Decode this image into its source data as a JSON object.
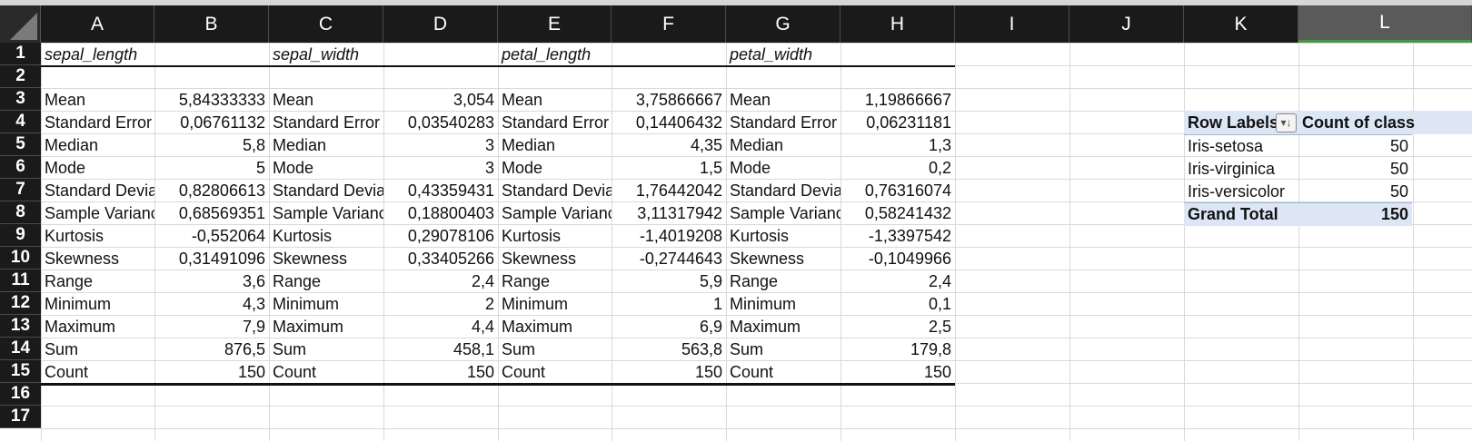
{
  "columns": [
    "A",
    "B",
    "C",
    "D",
    "E",
    "F",
    "G",
    "H",
    "I",
    "J",
    "K",
    "L"
  ],
  "rows": [
    "1",
    "2",
    "3",
    "4",
    "5",
    "6",
    "7",
    "8",
    "9",
    "10",
    "11",
    "12",
    "13",
    "14",
    "15",
    "16",
    "17"
  ],
  "selected_column": "L",
  "headers": {
    "A": "sepal_length",
    "C": "sepal_width",
    "E": "petal_length",
    "G": "petal_width"
  },
  "stat_labels": [
    "Mean",
    "Standard Error",
    "Median",
    "Mode",
    "Standard Deviation",
    "Sample Variance",
    "Kurtosis",
    "Skewness",
    "Range",
    "Minimum",
    "Maximum",
    "Sum",
    "Count"
  ],
  "stat_values": {
    "B": [
      "5,84333333",
      "0,06761132",
      "5,8",
      "5",
      "0,82806613",
      "0,68569351",
      "-0,552064",
      "0,31491096",
      "3,6",
      "4,3",
      "7,9",
      "876,5",
      "150"
    ],
    "D": [
      "3,054",
      "0,03540283",
      "3",
      "3",
      "0,43359431",
      "0,18800403",
      "0,29078106",
      "0,33405266",
      "2,4",
      "2",
      "4,4",
      "458,1",
      "150"
    ],
    "F": [
      "3,75866667",
      "0,14406432",
      "4,35",
      "1,5",
      "1,76442042",
      "3,11317942",
      "-1,4019208",
      "-0,2744643",
      "5,9",
      "1",
      "6,9",
      "563,8",
      "150"
    ],
    "H": [
      "1,19866667",
      "0,06231181",
      "1,3",
      "0,2",
      "0,76316074",
      "0,58241432",
      "-1,3397542",
      "-0,1049966",
      "2,4",
      "0,1",
      "2,5",
      "179,8",
      "150"
    ]
  },
  "pivot": {
    "row_label_header": "Row Labels",
    "value_header": "Count of class",
    "filter_icon": "sort-filter-icon",
    "rows": [
      {
        "label": "Iris-setosa",
        "value": "50"
      },
      {
        "label": "Iris-virginica",
        "value": "50"
      },
      {
        "label": "Iris-versicolor",
        "value": "50"
      }
    ],
    "total_label": "Grand Total",
    "total_value": "150"
  },
  "colors": {
    "header_bg": "#1a1a1a",
    "selected_header_bg": "#5a5a5a",
    "selected_accent": "#3d9a3d",
    "pivot_fill": "#dce6f4"
  }
}
